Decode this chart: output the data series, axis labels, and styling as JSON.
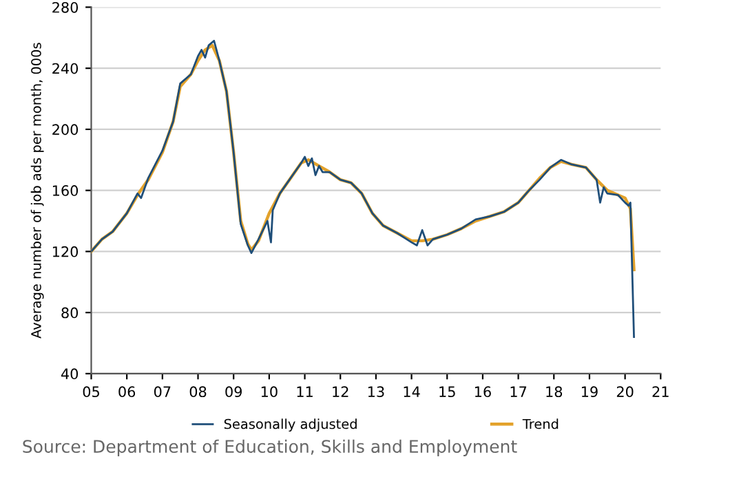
{
  "chart_data": {
    "type": "line",
    "ylabel": "Average number of job ads per month, 000s",
    "annotations": [
      "Source: Department of Education, Skills and Employment"
    ],
    "xlim": [
      5,
      21
    ],
    "xticks": [
      {
        "value": 5,
        "label": "05"
      },
      {
        "value": 6,
        "label": "06"
      },
      {
        "value": 7,
        "label": "07"
      },
      {
        "value": 8,
        "label": "08"
      },
      {
        "value": 9,
        "label": "09"
      },
      10,
      11,
      12,
      13,
      14,
      15,
      16,
      17,
      18,
      19,
      20,
      21
    ],
    "ylim": [
      40,
      280
    ],
    "yticks": [
      40,
      80,
      120,
      160,
      200,
      240,
      280
    ],
    "grid": "y",
    "legend": "bottom",
    "marker": "none",
    "line_style": "solid",
    "series": [
      {
        "name": "Seasonally adjusted",
        "color": "#1f4e79",
        "x": [
          5.0,
          5.3,
          5.6,
          6.0,
          6.3,
          6.4,
          6.6,
          7.0,
          7.3,
          7.5,
          7.6,
          7.8,
          8.0,
          8.1,
          8.2,
          8.3,
          8.45,
          8.6,
          8.8,
          9.0,
          9.2,
          9.4,
          9.5,
          9.7,
          9.95,
          10.05,
          10.1,
          10.3,
          10.6,
          10.9,
          11.0,
          11.1,
          11.2,
          11.3,
          11.4,
          11.5,
          11.7,
          12.0,
          12.3,
          12.6,
          12.9,
          13.2,
          13.6,
          14.0,
          14.15,
          14.3,
          14.45,
          14.6,
          15.0,
          15.4,
          15.8,
          16.2,
          16.6,
          17.0,
          17.3,
          17.6,
          17.9,
          18.2,
          18.5,
          18.9,
          19.2,
          19.3,
          19.4,
          19.5,
          19.8,
          20.0,
          20.1,
          20.15,
          20.25
        ],
        "values": [
          120,
          128,
          133,
          145,
          158,
          155,
          168,
          186,
          205,
          230,
          232,
          236,
          248,
          252,
          247,
          255,
          258,
          245,
          225,
          185,
          138,
          124,
          119,
          128,
          140,
          126,
          147,
          158,
          168,
          178,
          182,
          176,
          181,
          170,
          176,
          172,
          172,
          167,
          165,
          158,
          145,
          137,
          132,
          126,
          124,
          134,
          124,
          128,
          131,
          135,
          141,
          143,
          146,
          152,
          160,
          167,
          175,
          180,
          177,
          175,
          167,
          152,
          162,
          158,
          157,
          152,
          150,
          152,
          64
        ]
      },
      {
        "name": "Trend",
        "color": "#e3a22b",
        "x": [
          5.0,
          5.3,
          5.6,
          6.0,
          6.3,
          6.6,
          7.0,
          7.3,
          7.5,
          7.8,
          8.0,
          8.2,
          8.4,
          8.6,
          8.8,
          9.0,
          9.2,
          9.4,
          9.5,
          9.7,
          10.0,
          10.3,
          10.6,
          10.9,
          11.1,
          11.4,
          11.7,
          12.0,
          12.3,
          12.6,
          12.9,
          13.2,
          13.6,
          14.0,
          14.3,
          14.6,
          15.0,
          15.4,
          15.8,
          16.2,
          16.6,
          17.0,
          17.3,
          17.6,
          17.9,
          18.2,
          18.5,
          18.9,
          19.2,
          19.5,
          19.8,
          20.0,
          20.15,
          20.25
        ],
        "values": [
          120,
          128,
          133,
          145,
          157,
          167,
          185,
          205,
          228,
          236,
          245,
          252,
          255,
          245,
          225,
          185,
          140,
          125,
          121,
          127,
          145,
          158,
          168,
          178,
          180,
          176,
          172,
          167,
          165,
          158,
          145,
          137,
          132,
          127,
          127,
          128,
          131,
          135,
          140,
          143,
          146,
          152,
          160,
          168,
          175,
          179,
          177,
          175,
          167,
          160,
          157,
          155,
          148,
          108
        ]
      }
    ]
  }
}
